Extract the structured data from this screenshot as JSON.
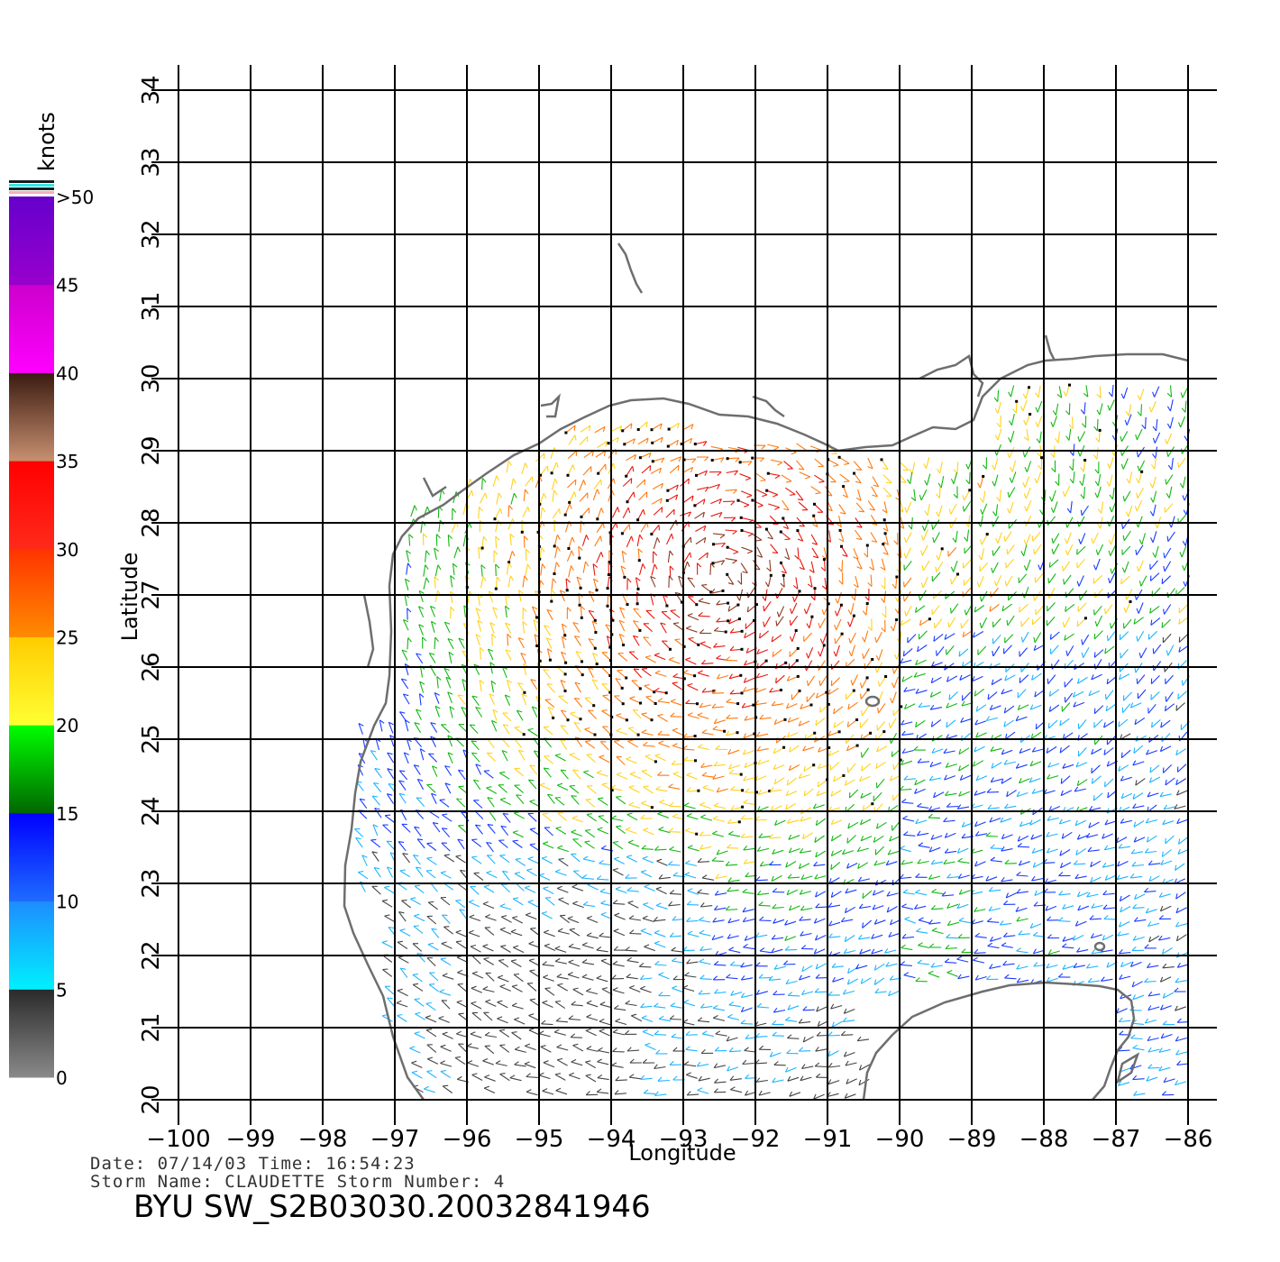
{
  "legend": {
    "title": "knots",
    "bands": [
      {
        "from": 0,
        "to": 5,
        "top_color": "#2a2a2a",
        "bottom_color": "#8a8a8a"
      },
      {
        "from": 5,
        "to": 10,
        "top_color": "#1e8cff",
        "bottom_color": "#00f0ff"
      },
      {
        "from": 10,
        "to": 15,
        "top_color": "#0000ff",
        "bottom_color": "#1e6cff"
      },
      {
        "from": 15,
        "to": 20,
        "top_color": "#00ff00",
        "bottom_color": "#006600"
      },
      {
        "from": 20,
        "to": 25,
        "top_color": "#ffcc00",
        "bottom_color": "#ffff33"
      },
      {
        "from": 25,
        "to": 30,
        "top_color": "#ff3300",
        "bottom_color": "#ff8c00"
      },
      {
        "from": 30,
        "to": 35,
        "top_color": "#ff0000",
        "bottom_color": "#ff2a1a"
      },
      {
        "from": 35,
        "to": 40,
        "top_color": "#3a1a10",
        "bottom_color": "#c89070"
      },
      {
        "from": 40,
        "to": 45,
        "top_color": "#cc00cc",
        "bottom_color": "#ff00ff"
      },
      {
        "from": 45,
        "to": 50,
        "top_color": "#6600cc",
        "bottom_color": "#9900cc"
      }
    ],
    "labels": [
      "0",
      "5",
      "10",
      "15",
      "20",
      "25",
      "30",
      "35",
      "40",
      "45",
      ">50"
    ]
  },
  "map": {
    "lon_range": [
      -100,
      -86
    ],
    "lat_range": [
      20,
      34
    ],
    "lon_ticks": [
      "−100",
      "−99",
      "−98",
      "−97",
      "−96",
      "−95",
      "−94",
      "−93",
      "−92",
      "−91",
      "−90",
      "−89",
      "−88",
      "−87",
      "−86"
    ],
    "lat_ticks": [
      "20",
      "21",
      "22",
      "23",
      "24",
      "25",
      "26",
      "27",
      "28",
      "29",
      "30",
      "31",
      "32",
      "33",
      "34"
    ],
    "xlabel": "Longitude",
    "ylabel": "Latitude",
    "coast_color": "#6e6e6e",
    "grid_color": "#000000"
  },
  "meta": {
    "date_line": "Date: 07/14/03   Time: 16:54:23",
    "storm_line": "Storm Name: CLAUDETTE   Storm Number: 4",
    "file_title": "BYU SW_S2B03030.20032841946"
  }
}
